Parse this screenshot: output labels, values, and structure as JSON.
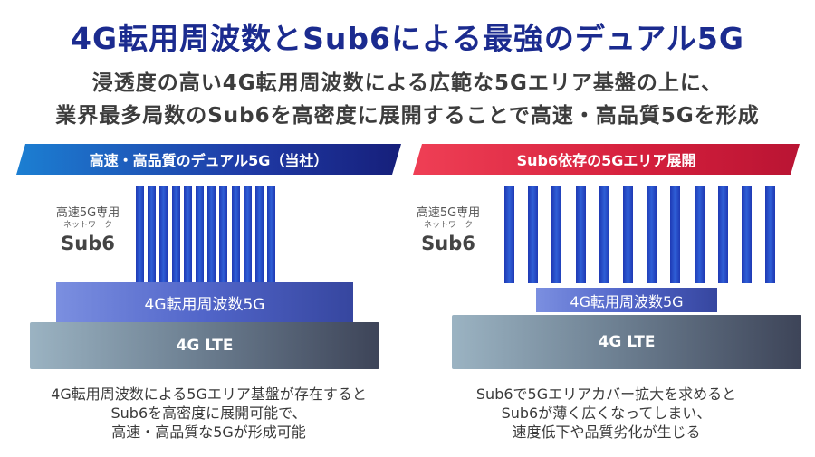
{
  "title": "4G転用周波数とSub6による最強のデュアル5G",
  "subtitle_lines": [
    "浸透度の高い4G転用周波数による広範な5Gエリア基盤の上に、",
    "業界最多局数のSub6を高密度に展開することで高速・高品質5Gを形成"
  ],
  "left": {
    "banner": "高速・高品質のデュアル5G（当社）",
    "network_label": {
      "line1": "高速5G専用",
      "line2": "ネットワーク",
      "line3": "Sub6"
    },
    "freq_layer": "4G転用周波数5G",
    "lte_layer": "4G LTE",
    "caption_lines": [
      "4G転用周波数による5Gエリア基盤が存在すると",
      "Sub6を高密度に展開可能で、",
      "高速・高品質な5Gが形成可能"
    ]
  },
  "right": {
    "banner": "Sub6依存の5Gエリア展開",
    "network_label": {
      "line1": "高速5G専用",
      "line2": "ネットワーク",
      "line3": "Sub6"
    },
    "freq_layer": "4G転用周波数5G",
    "lte_layer": "4G LTE",
    "caption_lines": [
      "Sub6で5Gエリアカバー拡大を求めると",
      "Sub6が薄く広くなってしまい、",
      "速度低下や品質劣化が生じる"
    ]
  },
  "colors": {
    "title": "#1b2b8f",
    "left_banner": "#1f3aa6",
    "right_banner": "#d41f3c",
    "sub6_bars": "#2346c2"
  }
}
